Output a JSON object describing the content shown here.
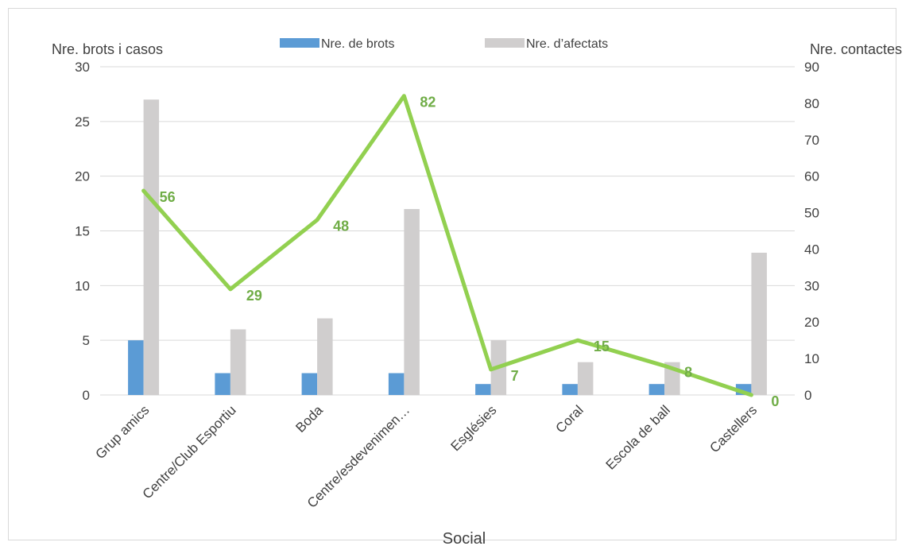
{
  "chart_data": {
    "type": "bar",
    "xlabel": "Social",
    "y_left_label": "Nre. brots i casos",
    "y_right_label": "Nre. contactes",
    "y_left_range": [
      0,
      30
    ],
    "y_left_ticks": [
      0,
      5,
      10,
      15,
      20,
      25,
      30
    ],
    "y_right_range": [
      0,
      90
    ],
    "y_right_ticks": [
      0,
      10,
      20,
      30,
      40,
      50,
      60,
      70,
      80,
      90
    ],
    "categories": [
      "Grup amics",
      "Centre/Club Esportiu",
      "Boda",
      "Centre/esdevenimen…",
      "Esglésies",
      "Coral",
      "Escola de ball",
      "Castellers"
    ],
    "series": [
      {
        "name": "Nre. de brots",
        "type": "bar",
        "axis": "left",
        "color": "#5b9bd5",
        "values": [
          5,
          2,
          2,
          2,
          1,
          1,
          1,
          1
        ]
      },
      {
        "name": "Nre. d’afectats",
        "type": "bar",
        "axis": "left",
        "color": "#d0cece",
        "values": [
          27,
          6,
          7,
          17,
          5,
          3,
          3,
          13
        ]
      },
      {
        "name": "",
        "type": "line",
        "axis": "right",
        "color": "#92d050",
        "label_color": "#70ad47",
        "values": [
          56,
          29,
          48,
          82,
          7,
          15,
          8,
          0
        ]
      }
    ],
    "grid": true,
    "legend": "top-center"
  }
}
